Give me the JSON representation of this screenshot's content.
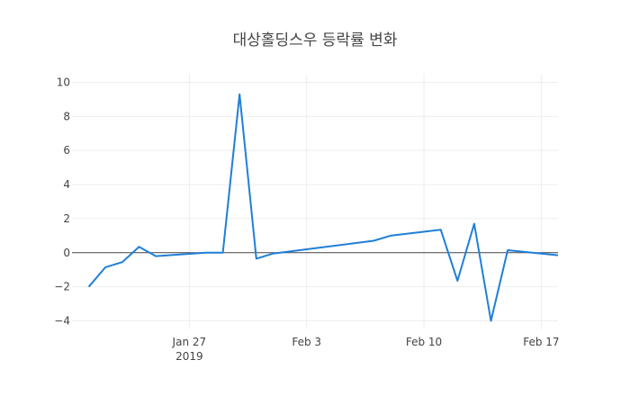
{
  "chart_data": {
    "type": "line",
    "title": "대상홀딩스우 등락률 변화",
    "xlabel": "",
    "ylabel": "",
    "x_range": [
      "2019-01-20",
      "2019-02-18"
    ],
    "ylim": [
      -4.5,
      10.5
    ],
    "grid": true,
    "legend": "none",
    "colors": {
      "line": "#1f7fd8",
      "grid": "#eeeeee",
      "zero_line": "#444444",
      "text": "#444444"
    },
    "y_ticks": [
      {
        "value": -4,
        "label": "−4"
      },
      {
        "value": -2,
        "label": "−2"
      },
      {
        "value": 0,
        "label": "0"
      },
      {
        "value": 2,
        "label": "2"
      },
      {
        "value": 4,
        "label": "4"
      },
      {
        "value": 6,
        "label": "6"
      },
      {
        "value": 8,
        "label": "8"
      },
      {
        "value": 10,
        "label": "10"
      }
    ],
    "x_ticks": [
      {
        "value": "2019-01-27",
        "label": "Jan 27",
        "sublabel": "2019"
      },
      {
        "value": "2019-02-03",
        "label": "Feb 3",
        "sublabel": ""
      },
      {
        "value": "2019-02-10",
        "label": "Feb 10",
        "sublabel": ""
      },
      {
        "value": "2019-02-17",
        "label": "Feb 17",
        "sublabel": ""
      }
    ],
    "series": [
      {
        "x": [
          "2019-01-21",
          "2019-01-22",
          "2019-01-23",
          "2019-01-24",
          "2019-01-25",
          "2019-01-28",
          "2019-01-29",
          "2019-01-30",
          "2019-01-31",
          "2019-02-01",
          "2019-02-07",
          "2019-02-08",
          "2019-02-11",
          "2019-02-12",
          "2019-02-13",
          "2019-02-14",
          "2019-02-15",
          "2019-02-18"
        ],
        "y": [
          -2.0,
          -0.85,
          -0.55,
          0.35,
          -0.2,
          0.0,
          0.0,
          9.3,
          -0.35,
          -0.05,
          0.7,
          1.0,
          1.35,
          -1.65,
          1.7,
          -4.0,
          0.15,
          -0.15
        ]
      }
    ]
  }
}
